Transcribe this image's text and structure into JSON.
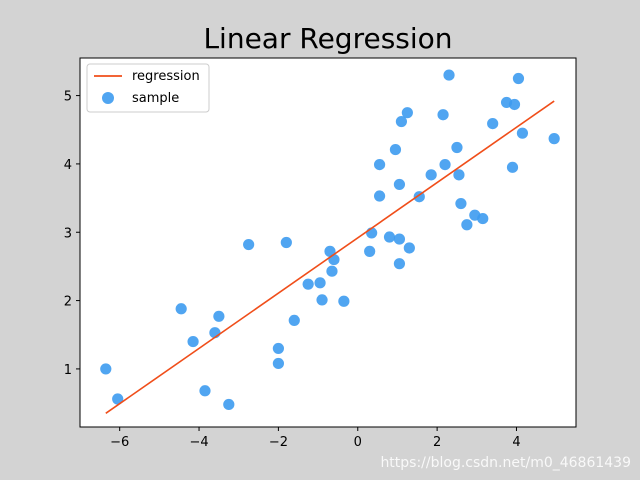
{
  "chart_data": {
    "type": "scatter",
    "title": "Linear Regression",
    "xlabel": "",
    "ylabel": "",
    "xlim": [
      -7,
      5.5
    ],
    "ylim": [
      0.15,
      5.55
    ],
    "xticks": [
      -6,
      -4,
      -2,
      0,
      2,
      4
    ],
    "yticks": [
      1,
      2,
      3,
      4,
      5
    ],
    "xtick_labels": [
      "−6",
      "−4",
      "−2",
      "0",
      "2",
      "4"
    ],
    "ytick_labels": [
      "1",
      "2",
      "3",
      "4",
      "5"
    ],
    "grid": false,
    "legend_position": "top-left",
    "series": [
      {
        "name": "regression",
        "kind": "line",
        "color": "#f04e1a",
        "x": [
          -6.35,
          4.95
        ],
        "y": [
          0.35,
          4.92
        ]
      },
      {
        "name": "sample",
        "kind": "scatter",
        "color": "#3d9bf0",
        "points": [
          [
            -6.35,
            1.0
          ],
          [
            -6.05,
            0.56
          ],
          [
            -4.45,
            1.88
          ],
          [
            -4.15,
            1.4
          ],
          [
            -3.85,
            0.68
          ],
          [
            -3.6,
            1.53
          ],
          [
            -3.5,
            1.77
          ],
          [
            -3.25,
            0.48
          ],
          [
            -2.75,
            2.82
          ],
          [
            -2.0,
            1.3
          ],
          [
            -2.0,
            1.08
          ],
          [
            -1.8,
            2.85
          ],
          [
            -1.6,
            1.71
          ],
          [
            -1.25,
            2.24
          ],
          [
            -0.95,
            2.26
          ],
          [
            -0.9,
            2.01
          ],
          [
            -0.7,
            2.72
          ],
          [
            -0.65,
            2.43
          ],
          [
            -0.6,
            2.6
          ],
          [
            -0.35,
            1.99
          ],
          [
            0.3,
            2.72
          ],
          [
            0.35,
            2.99
          ],
          [
            0.55,
            3.53
          ],
          [
            0.55,
            3.99
          ],
          [
            0.8,
            2.93
          ],
          [
            0.95,
            4.21
          ],
          [
            1.05,
            2.54
          ],
          [
            1.05,
            2.9
          ],
          [
            1.05,
            3.7
          ],
          [
            1.1,
            4.62
          ],
          [
            1.25,
            4.75
          ],
          [
            1.3,
            2.77
          ],
          [
            1.55,
            3.52
          ],
          [
            1.85,
            3.84
          ],
          [
            2.15,
            4.72
          ],
          [
            2.2,
            3.99
          ],
          [
            2.3,
            5.3
          ],
          [
            2.5,
            4.24
          ],
          [
            2.55,
            3.84
          ],
          [
            2.6,
            3.42
          ],
          [
            2.75,
            3.11
          ],
          [
            2.95,
            3.25
          ],
          [
            3.15,
            3.2
          ],
          [
            3.4,
            4.59
          ],
          [
            3.75,
            4.9
          ],
          [
            3.9,
            3.95
          ],
          [
            3.95,
            4.87
          ],
          [
            4.05,
            5.25
          ],
          [
            4.15,
            4.45
          ],
          [
            4.95,
            4.37
          ]
        ]
      }
    ]
  },
  "watermark": "https://blog.csdn.net/m0_46861439"
}
